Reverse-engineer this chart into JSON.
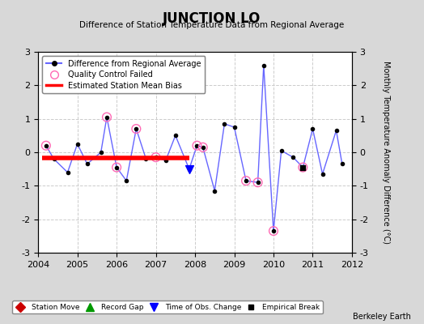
{
  "title": "JUNCTION LO",
  "subtitle": "Difference of Station Temperature Data from Regional Average",
  "ylabel": "Monthly Temperature Anomaly Difference (°C)",
  "attribution": "Berkeley Earth",
  "xlim": [
    2004,
    2012
  ],
  "ylim": [
    -3,
    3
  ],
  "xticks": [
    2004,
    2005,
    2006,
    2007,
    2008,
    2009,
    2010,
    2011,
    2012
  ],
  "yticks": [
    -3,
    -2,
    -1,
    0,
    1,
    2,
    3
  ],
  "background_color": "#d8d8d8",
  "plot_bg_color": "#ffffff",
  "bias_line": {
    "x_start": 2004.1,
    "x_end": 2007.85,
    "y": -0.18
  },
  "main_line_color": "#6666ff",
  "main_line_data_x": [
    2004.2,
    2004.4,
    2004.75,
    2005.0,
    2005.25,
    2005.6,
    2005.75,
    2006.0,
    2006.25,
    2006.5,
    2006.75,
    2007.0,
    2007.25,
    2007.5,
    2007.85,
    2008.05,
    2008.2,
    2008.5,
    2008.75,
    2009.0,
    2009.3,
    2009.6,
    2009.75,
    2010.0,
    2010.2,
    2010.5,
    2010.75,
    2011.0,
    2011.25,
    2011.6,
    2011.75
  ],
  "main_line_data_y": [
    0.2,
    -0.2,
    -0.6,
    0.25,
    -0.35,
    0.0,
    1.05,
    -0.45,
    -0.85,
    0.7,
    -0.2,
    -0.15,
    -0.25,
    0.5,
    -0.5,
    0.2,
    0.15,
    -1.15,
    0.85,
    0.75,
    -0.85,
    -0.9,
    2.6,
    -2.35,
    0.05,
    -0.15,
    -0.45,
    0.7,
    -0.65,
    0.65,
    -0.35
  ],
  "qc_failed_x": [
    2004.2,
    2005.75,
    2006.0,
    2006.5,
    2007.0,
    2008.05,
    2008.2,
    2009.3,
    2009.6,
    2010.0,
    2010.75
  ],
  "qc_failed_y": [
    0.2,
    1.05,
    -0.45,
    0.7,
    -0.15,
    0.2,
    0.15,
    -0.85,
    -0.9,
    -2.35,
    -0.45
  ],
  "time_obs_change_x": [
    2007.85
  ],
  "time_obs_change_y": [
    -0.5
  ],
  "empirical_break_x": [
    2010.75
  ],
  "empirical_break_y": [
    -0.45
  ]
}
